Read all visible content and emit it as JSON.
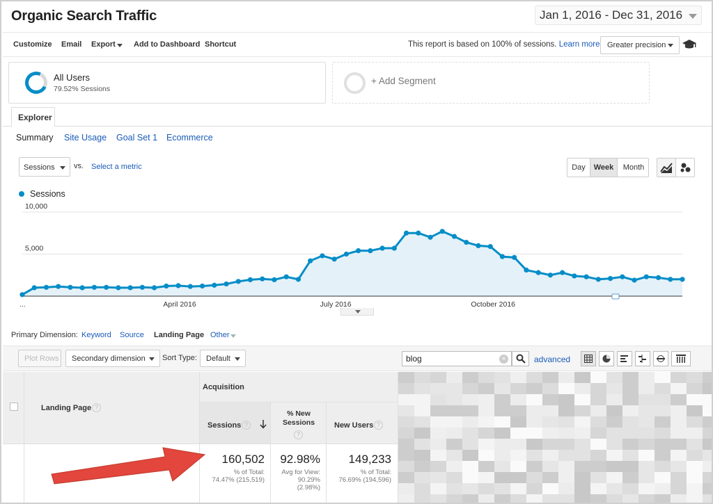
{
  "header": {
    "title": "Organic Search Traffic",
    "date_range": "Jan 1, 2016 - Dec 31, 2016"
  },
  "toolbar": {
    "customize": "Customize",
    "email": "Email",
    "export": "Export",
    "add_to_dashboard": "Add to Dashboard",
    "shortcut": "Shortcut",
    "note": "This report is based on 100% of sessions.",
    "learn_more": "Learn more",
    "precision": "Greater precision"
  },
  "segments": {
    "active_name": "All Users",
    "active_pct": "79.52% Sessions",
    "add_segment": "+ Add Segment"
  },
  "explorer": {
    "tab": "Explorer",
    "subtabs": [
      "Summary",
      "Site Usage",
      "Goal Set 1",
      "Ecommerce"
    ]
  },
  "chart_controls": {
    "metric": "Sessions",
    "vs": "vs.",
    "select_metric": "Select a metric",
    "granularity": [
      "Day",
      "Week",
      "Month"
    ],
    "selected_granularity": "Week"
  },
  "chart_data": {
    "type": "area",
    "series": [
      {
        "name": "Sessions",
        "color": "#058dc7",
        "values": [
          180,
          1000,
          1050,
          1150,
          1050,
          1000,
          1050,
          1050,
          1000,
          1000,
          1050,
          1000,
          1200,
          1250,
          1150,
          1200,
          1300,
          1450,
          1750,
          1950,
          2050,
          1950,
          2300,
          2000,
          4200,
          4800,
          4400,
          5000,
          5400,
          5400,
          5700,
          5700,
          7500,
          7500,
          7000,
          7700,
          7100,
          6400,
          6000,
          5900,
          4700,
          4600,
          3100,
          2800,
          2500,
          2800,
          2400,
          2300,
          2000,
          2100,
          2300,
          1900,
          2300,
          2200,
          2000,
          2000
        ]
      }
    ],
    "x_tick_labels": [
      "...",
      "April 2016",
      "July 2016",
      "October 2016"
    ],
    "y_tick_labels": [
      "10,000",
      "5,000"
    ],
    "ylim": [
      0,
      10000
    ],
    "grid": true,
    "legend": "top-left"
  },
  "dimension": {
    "label": "Primary Dimension:",
    "options": [
      "Keyword",
      "Source",
      "Landing Page",
      "Other"
    ],
    "selected": "Landing Page"
  },
  "table_bar": {
    "plot_rows": "Plot Rows",
    "secondary": "Secondary dimension",
    "sort_type_label": "Sort Type:",
    "sort_type": "Default",
    "search_value": "blog",
    "advanced": "advanced"
  },
  "table": {
    "group_header": "Acquisition",
    "col_landing": "Landing Page",
    "col_sessions": "Sessions",
    "col_new_sessions": "% New Sessions",
    "col_new_users": "New Users",
    "totals": {
      "sessions": "160,502",
      "sessions_note1": "% of Total:",
      "sessions_note2": "74.47% (215,519)",
      "new_sessions": "92.98%",
      "new_sessions_note1": "Avg for View:",
      "new_sessions_note2": "90.29%",
      "new_sessions_note3": "(2.98%)",
      "new_users": "149,233",
      "new_users_note1": "% of Total:",
      "new_users_note2": "76.69% (194,596)"
    }
  },
  "colors": {
    "accent": "#058dc7",
    "link": "#1a5bb8",
    "arrow": "#e2463c"
  }
}
